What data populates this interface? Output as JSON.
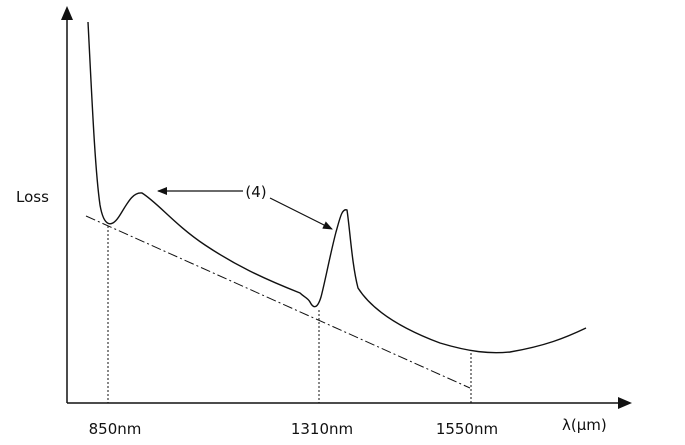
{
  "diagram": {
    "y_axis_label": "Loss",
    "x_axis_label": "λ(μm)",
    "x_ticks": [
      "850nm",
      "1310nm",
      "1550nm"
    ],
    "annotation": "(4)",
    "colors": {
      "line": "#111111",
      "background": "#ffffff"
    }
  }
}
